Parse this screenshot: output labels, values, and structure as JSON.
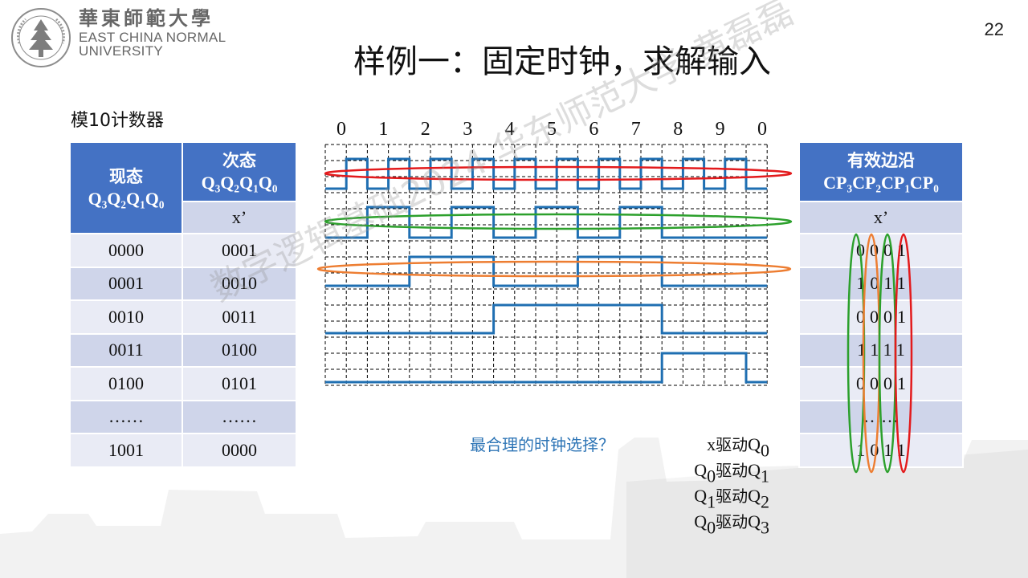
{
  "header": {
    "logo_cn": "華東師範大學",
    "logo_en_line1": "EAST CHINA NORMAL",
    "logo_en_line2": "UNIVERSITY",
    "page_number": "22"
  },
  "title": "样例一：固定时钟，求解输入",
  "counter_label": "模10计数器",
  "state_table": {
    "col1_header_cn": "现态",
    "col2_header_cn": "次态",
    "sub_header": "x’",
    "rows": [
      [
        "0000",
        "0001"
      ],
      [
        "0001",
        "0010"
      ],
      [
        "0010",
        "0011"
      ],
      [
        "0011",
        "0100"
      ],
      [
        "0100",
        "0101"
      ],
      [
        "……",
        "……"
      ],
      [
        "1001",
        "0000"
      ]
    ]
  },
  "edge_table": {
    "header_cn": "有效边沿",
    "sub_header": "x’",
    "rows": [
      "0001",
      "1011",
      "0001",
      "1111",
      "0001",
      "……",
      "1011"
    ]
  },
  "timing": {
    "count_labels": [
      "0",
      "1",
      "2",
      "3",
      "4",
      "5",
      "6",
      "7",
      "8",
      "9",
      "0"
    ],
    "signals": [
      {
        "levels": [
          0,
          1,
          0,
          1,
          0,
          1,
          0,
          1,
          0,
          1,
          0,
          1,
          0,
          1,
          0,
          1,
          0,
          1,
          0,
          1,
          0
        ]
      },
      {
        "levels": [
          0,
          0,
          1,
          1,
          0,
          0,
          1,
          1,
          0,
          0,
          1,
          1,
          0,
          0,
          1,
          1,
          0,
          0,
          0,
          0,
          0
        ]
      },
      {
        "levels": [
          0,
          0,
          0,
          0,
          1,
          1,
          1,
          1,
          0,
          0,
          0,
          0,
          1,
          1,
          1,
          1,
          0,
          0,
          0,
          0,
          0
        ]
      },
      {
        "levels": [
          0,
          0,
          0,
          0,
          0,
          0,
          0,
          0,
          1,
          1,
          1,
          1,
          1,
          1,
          1,
          1,
          0,
          0,
          0,
          0,
          0
        ]
      },
      {
        "levels": [
          0,
          0,
          0,
          0,
          0,
          0,
          0,
          0,
          0,
          0,
          0,
          0,
          0,
          0,
          0,
          0,
          1,
          1,
          1,
          1,
          0
        ]
      }
    ],
    "ellipse_colors": [
      "#e31a1c",
      "#2ca02c",
      "#ed7d31"
    ]
  },
  "column_ellipse_colors": [
    "#2ca02c",
    "#ed7d31",
    "#2ca02c",
    "#e31a1c"
  ],
  "question": "最合理的时钟选择？",
  "drives": [
    {
      "a": "x",
      "verb": "驱动",
      "b": "Q",
      "b_sub": "0"
    },
    {
      "a": "Q",
      "a_sub": "0",
      "verb": "驱动",
      "b": "Q",
      "b_sub": "1"
    },
    {
      "a": "Q",
      "a_sub": "1",
      "verb": "驱动",
      "b": "Q",
      "b_sub": "2"
    },
    {
      "a": "Q",
      "a_sub": "0",
      "verb": "驱动",
      "b": "Q",
      "b_sub": "3"
    }
  ],
  "watermark": "数字逻辑基础2024 华东师范大学 黄磊磊",
  "colors": {
    "accent_blue": "#4472c4",
    "waveform": "#1f6fb2",
    "question_text": "#2e75b6"
  }
}
